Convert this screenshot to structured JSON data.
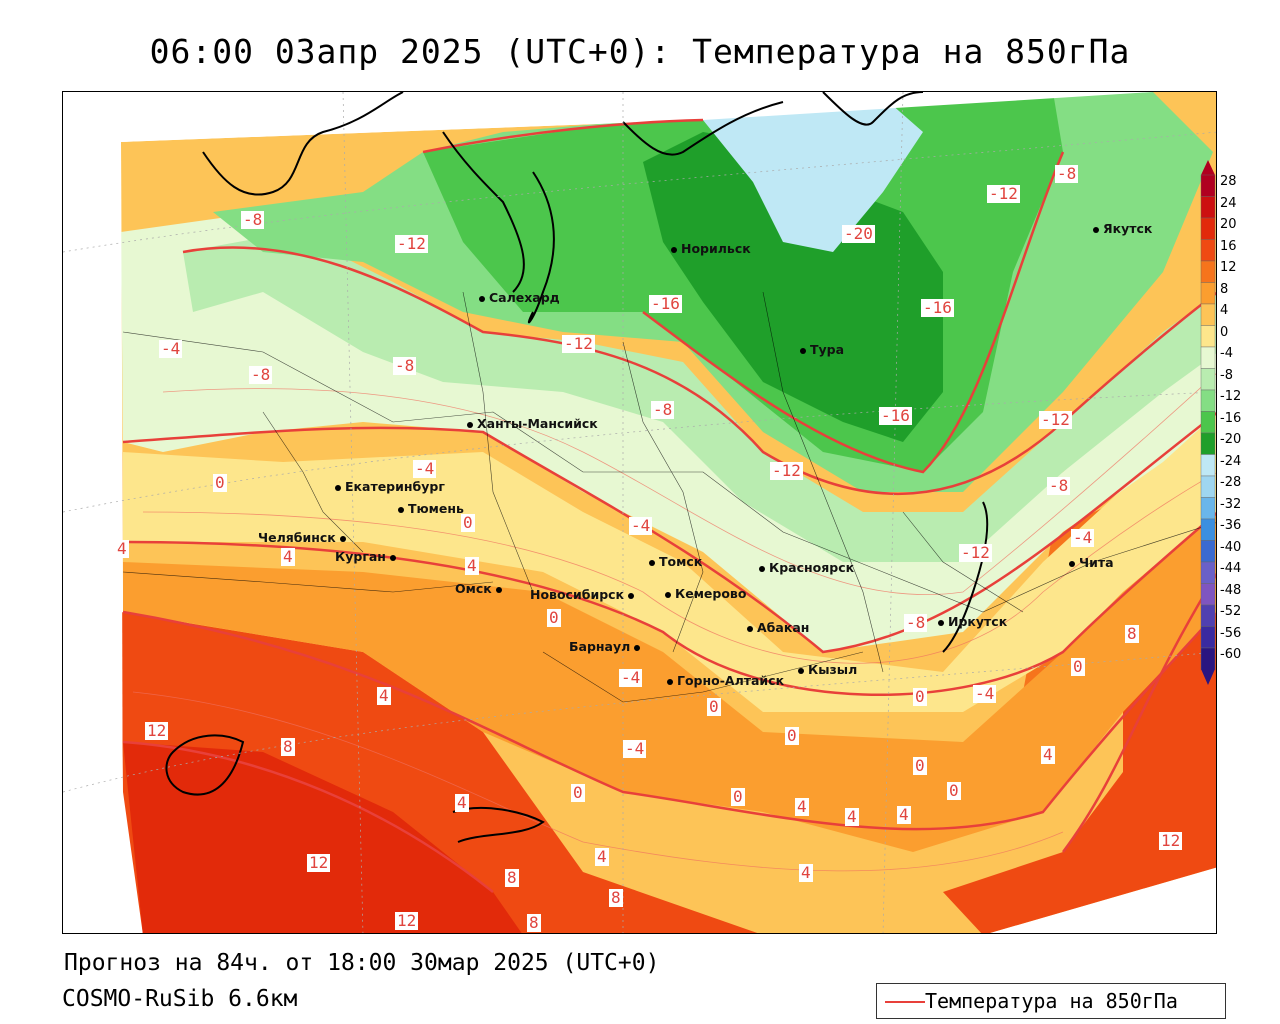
{
  "title": "06:00 03апр 2025 (UTC+0): Температура на 850гПа",
  "footer": {
    "forecast": "Прогноз на 84ч. от 18:00 30мар 2025 (UTC+0)",
    "model": "COSMO-RuSib 6.6км"
  },
  "legend": {
    "label": "Температура на 850гПа"
  },
  "colorbar": {
    "levels": [
      "28",
      "24",
      "20",
      "16",
      "12",
      "8",
      "4",
      "0",
      "-4",
      "-8",
      "-12",
      "-16",
      "-20",
      "-24",
      "-28",
      "-32",
      "-36",
      "-40",
      "-44",
      "-48",
      "-52",
      "-56",
      "-60"
    ],
    "colors": [
      "#b00020",
      "#cc1010",
      "#e22a0a",
      "#ef4a12",
      "#f6741c",
      "#fb9e2f",
      "#fdc457",
      "#fde68c",
      "#e7f8d2",
      "#b9ecb0",
      "#84de84",
      "#4cc64c",
      "#1f9f2a",
      "#bfe8f5",
      "#9fd6f0",
      "#6ab6ea",
      "#3b8fe0",
      "#3a6ad0",
      "#6a60c8",
      "#7f55c0",
      "#5040b0",
      "#3a2aa0",
      "#2a1580"
    ]
  },
  "cities": [
    {
      "name": "Якутск"
    },
    {
      "name": "Норильск"
    },
    {
      "name": "Салехард"
    },
    {
      "name": "Тура"
    },
    {
      "name": "Ханты-Мансийск"
    },
    {
      "name": "Екатеринбург"
    },
    {
      "name": "Тюмень"
    },
    {
      "name": "Челябинск"
    },
    {
      "name": "Курган"
    },
    {
      "name": "Омск"
    },
    {
      "name": "Новосибирск"
    },
    {
      "name": "Томск"
    },
    {
      "name": "Кемерово"
    },
    {
      "name": "Красноярск"
    },
    {
      "name": "Абакан"
    },
    {
      "name": "Иркутск"
    },
    {
      "name": "Чита"
    },
    {
      "name": "Барнаул"
    },
    {
      "name": "Горно-Алтайск"
    },
    {
      "name": "Кызыл"
    }
  ],
  "isotherm_labels": [
    "-8",
    "-12",
    "-16",
    "-20",
    "-4",
    "0",
    "4",
    "8",
    "12"
  ]
}
